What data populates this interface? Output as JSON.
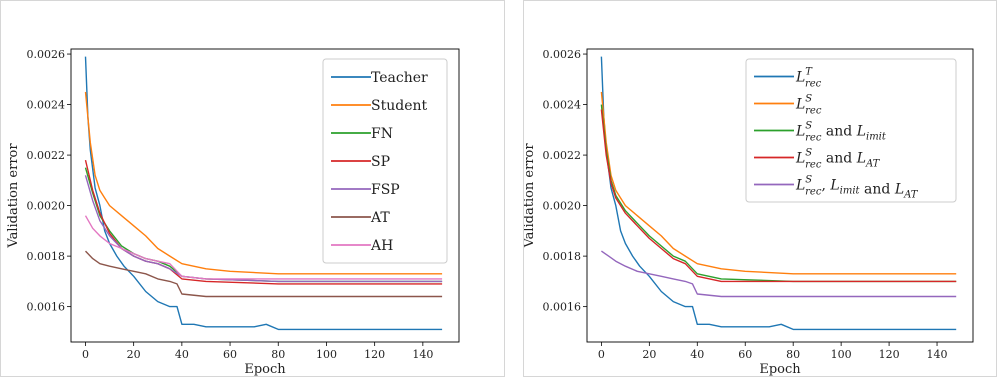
{
  "chart_data": [
    {
      "type": "line",
      "title": "",
      "xlabel": "Epoch",
      "ylabel": "Validation error",
      "xlim": [
        -6,
        155
      ],
      "ylim": [
        0.00146,
        0.00262
      ],
      "xticks": [
        0,
        20,
        40,
        60,
        80,
        100,
        120,
        140
      ],
      "yticks": [
        0.0016,
        0.0018,
        0.002,
        0.0022,
        0.0024,
        0.0026
      ],
      "ytick_labels": [
        "0.0016",
        "0.0018",
        "0.0020",
        "0.0022",
        "0.0024",
        "0.0026"
      ],
      "grid": false,
      "legend_position": "top-right",
      "series": [
        {
          "name": "Teacher",
          "color": "#1f77b4",
          "points": [
            [
              0,
              0.00259
            ],
            [
              1,
              0.00235
            ],
            [
              2,
              0.00222
            ],
            [
              4,
              0.00207
            ],
            [
              6,
              0.002
            ],
            [
              8,
              0.0019
            ],
            [
              10,
              0.00185
            ],
            [
              13,
              0.0018
            ],
            [
              16,
              0.00176
            ],
            [
              20,
              0.00172
            ],
            [
              25,
              0.00166
            ],
            [
              30,
              0.00162
            ],
            [
              35,
              0.0016
            ],
            [
              38,
              0.0016
            ],
            [
              40,
              0.00153
            ],
            [
              45,
              0.00153
            ],
            [
              50,
              0.00152
            ],
            [
              60,
              0.00152
            ],
            [
              70,
              0.00152
            ],
            [
              75,
              0.00153
            ],
            [
              80,
              0.00151
            ],
            [
              100,
              0.00151
            ],
            [
              120,
              0.00151
            ],
            [
              148,
              0.00151
            ]
          ]
        },
        {
          "name": "Student",
          "color": "#ff7f0e",
          "points": [
            [
              0,
              0.00245
            ],
            [
              2,
              0.00225
            ],
            [
              4,
              0.00212
            ],
            [
              6,
              0.00206
            ],
            [
              8,
              0.00203
            ],
            [
              10,
              0.002
            ],
            [
              15,
              0.00196
            ],
            [
              20,
              0.00192
            ],
            [
              25,
              0.00188
            ],
            [
              30,
              0.00183
            ],
            [
              35,
              0.0018
            ],
            [
              40,
              0.00177
            ],
            [
              50,
              0.00175
            ],
            [
              60,
              0.00174
            ],
            [
              80,
              0.00173
            ],
            [
              100,
              0.00173
            ],
            [
              120,
              0.00173
            ],
            [
              148,
              0.00173
            ]
          ]
        },
        {
          "name": "FN",
          "color": "#2ca02c",
          "points": [
            [
              0,
              0.00215
            ],
            [
              3,
              0.00205
            ],
            [
              6,
              0.00196
            ],
            [
              10,
              0.0019
            ],
            [
              15,
              0.00184
            ],
            [
              20,
              0.00181
            ],
            [
              25,
              0.00179
            ],
            [
              30,
              0.00178
            ],
            [
              35,
              0.00176
            ],
            [
              40,
              0.00172
            ],
            [
              50,
              0.00171
            ],
            [
              80,
              0.0017
            ],
            [
              148,
              0.0017
            ]
          ]
        },
        {
          "name": "SP",
          "color": "#d62728",
          "points": [
            [
              0,
              0.00218
            ],
            [
              3,
              0.00206
            ],
            [
              6,
              0.00197
            ],
            [
              10,
              0.00189
            ],
            [
              15,
              0.00183
            ],
            [
              20,
              0.0018
            ],
            [
              25,
              0.00178
            ],
            [
              30,
              0.00177
            ],
            [
              35,
              0.00175
            ],
            [
              40,
              0.00171
            ],
            [
              50,
              0.0017
            ],
            [
              80,
              0.00169
            ],
            [
              148,
              0.00169
            ]
          ]
        },
        {
          "name": "FSP",
          "color": "#9467bd",
          "points": [
            [
              0,
              0.00212
            ],
            [
              3,
              0.00202
            ],
            [
              6,
              0.00194
            ],
            [
              10,
              0.00188
            ],
            [
              15,
              0.00183
            ],
            [
              20,
              0.0018
            ],
            [
              25,
              0.00178
            ],
            [
              30,
              0.00177
            ],
            [
              35,
              0.00175
            ],
            [
              40,
              0.00172
            ],
            [
              50,
              0.00171
            ],
            [
              80,
              0.0017
            ],
            [
              148,
              0.0017
            ]
          ]
        },
        {
          "name": "AT",
          "color": "#8c564b",
          "points": [
            [
              0,
              0.00182
            ],
            [
              3,
              0.00179
            ],
            [
              6,
              0.00177
            ],
            [
              10,
              0.00176
            ],
            [
              15,
              0.00175
            ],
            [
              20,
              0.00174
            ],
            [
              25,
              0.00173
            ],
            [
              30,
              0.00171
            ],
            [
              35,
              0.0017
            ],
            [
              38,
              0.00169
            ],
            [
              40,
              0.00165
            ],
            [
              50,
              0.00164
            ],
            [
              80,
              0.00164
            ],
            [
              148,
              0.00164
            ]
          ]
        },
        {
          "name": "AH",
          "color": "#e377c2",
          "points": [
            [
              0,
              0.00196
            ],
            [
              3,
              0.00191
            ],
            [
              6,
              0.00188
            ],
            [
              10,
              0.00185
            ],
            [
              15,
              0.00183
            ],
            [
              20,
              0.00181
            ],
            [
              25,
              0.00179
            ],
            [
              30,
              0.00178
            ],
            [
              35,
              0.00177
            ],
            [
              40,
              0.00172
            ],
            [
              50,
              0.00171
            ],
            [
              80,
              0.00171
            ],
            [
              148,
              0.00171
            ]
          ]
        }
      ]
    },
    {
      "type": "line",
      "title": "",
      "xlabel": "Epoch",
      "ylabel": "Validation error",
      "xlim": [
        -6,
        155
      ],
      "ylim": [
        0.00146,
        0.00262
      ],
      "xticks": [
        0,
        20,
        40,
        60,
        80,
        100,
        120,
        140
      ],
      "yticks": [
        0.0016,
        0.0018,
        0.002,
        0.0022,
        0.0024,
        0.0026
      ],
      "ytick_labels": [
        "0.0016",
        "0.0018",
        "0.0020",
        "0.0022",
        "0.0024",
        "0.0026"
      ],
      "grid": false,
      "legend_position": "top-right",
      "series": [
        {
          "name": "L_rec^T",
          "color": "#1f77b4",
          "legend": {
            "base": "L",
            "sub": "rec",
            "sup": "T",
            "tail": ""
          },
          "points": [
            [
              0,
              0.00259
            ],
            [
              1,
              0.00235
            ],
            [
              2,
              0.00222
            ],
            [
              4,
              0.00207
            ],
            [
              6,
              0.002
            ],
            [
              8,
              0.0019
            ],
            [
              10,
              0.00185
            ],
            [
              13,
              0.0018
            ],
            [
              16,
              0.00176
            ],
            [
              20,
              0.00172
            ],
            [
              25,
              0.00166
            ],
            [
              30,
              0.00162
            ],
            [
              35,
              0.0016
            ],
            [
              38,
              0.0016
            ],
            [
              40,
              0.00153
            ],
            [
              45,
              0.00153
            ],
            [
              50,
              0.00152
            ],
            [
              60,
              0.00152
            ],
            [
              70,
              0.00152
            ],
            [
              75,
              0.00153
            ],
            [
              80,
              0.00151
            ],
            [
              100,
              0.00151
            ],
            [
              120,
              0.00151
            ],
            [
              148,
              0.00151
            ]
          ]
        },
        {
          "name": "L_rec^S",
          "color": "#ff7f0e",
          "legend": {
            "base": "L",
            "sub": "rec",
            "sup": "S",
            "tail": ""
          },
          "points": [
            [
              0,
              0.00245
            ],
            [
              2,
              0.00225
            ],
            [
              4,
              0.00212
            ],
            [
              6,
              0.00206
            ],
            [
              8,
              0.00203
            ],
            [
              10,
              0.002
            ],
            [
              15,
              0.00196
            ],
            [
              20,
              0.00192
            ],
            [
              25,
              0.00188
            ],
            [
              30,
              0.00183
            ],
            [
              35,
              0.0018
            ],
            [
              40,
              0.00177
            ],
            [
              50,
              0.00175
            ],
            [
              60,
              0.00174
            ],
            [
              80,
              0.00173
            ],
            [
              100,
              0.00173
            ],
            [
              120,
              0.00173
            ],
            [
              148,
              0.00173
            ]
          ]
        },
        {
          "name": "L_rec^S and L_imit",
          "color": "#2ca02c",
          "legend": {
            "base": "L",
            "sub": "rec",
            "sup": "S",
            "tail": " and L_imit"
          },
          "points": [
            [
              0,
              0.0024
            ],
            [
              2,
              0.00222
            ],
            [
              4,
              0.0021
            ],
            [
              6,
              0.00204
            ],
            [
              8,
              0.00201
            ],
            [
              10,
              0.00198
            ],
            [
              15,
              0.00193
            ],
            [
              20,
              0.00188
            ],
            [
              25,
              0.00184
            ],
            [
              30,
              0.0018
            ],
            [
              35,
              0.00178
            ],
            [
              40,
              0.00173
            ],
            [
              50,
              0.00171
            ],
            [
              80,
              0.0017
            ],
            [
              148,
              0.0017
            ]
          ]
        },
        {
          "name": "L_rec^S and L_AT",
          "color": "#d62728",
          "legend": {
            "base": "L",
            "sub": "rec",
            "sup": "S",
            "tail": " and L_AT"
          },
          "points": [
            [
              0,
              0.00238
            ],
            [
              2,
              0.0022
            ],
            [
              4,
              0.00209
            ],
            [
              6,
              0.00203
            ],
            [
              8,
              0.002
            ],
            [
              10,
              0.00197
            ],
            [
              15,
              0.00192
            ],
            [
              20,
              0.00187
            ],
            [
              25,
              0.00183
            ],
            [
              30,
              0.00179
            ],
            [
              35,
              0.00177
            ],
            [
              40,
              0.00172
            ],
            [
              50,
              0.0017
            ],
            [
              80,
              0.0017
            ],
            [
              148,
              0.0017
            ]
          ]
        },
        {
          "name": "L_rec^S, L_imit and L_AT",
          "color": "#9467bd",
          "legend": {
            "base": "L",
            "sub": "rec",
            "sup": "S",
            "tail": ", L_imit and L_AT"
          },
          "points": [
            [
              0,
              0.00182
            ],
            [
              3,
              0.0018
            ],
            [
              6,
              0.00178
            ],
            [
              10,
              0.00176
            ],
            [
              15,
              0.00174
            ],
            [
              20,
              0.00173
            ],
            [
              25,
              0.00172
            ],
            [
              30,
              0.00171
            ],
            [
              35,
              0.0017
            ],
            [
              38,
              0.00169
            ],
            [
              40,
              0.00165
            ],
            [
              50,
              0.00164
            ],
            [
              80,
              0.00164
            ],
            [
              148,
              0.00164
            ]
          ]
        }
      ]
    }
  ]
}
